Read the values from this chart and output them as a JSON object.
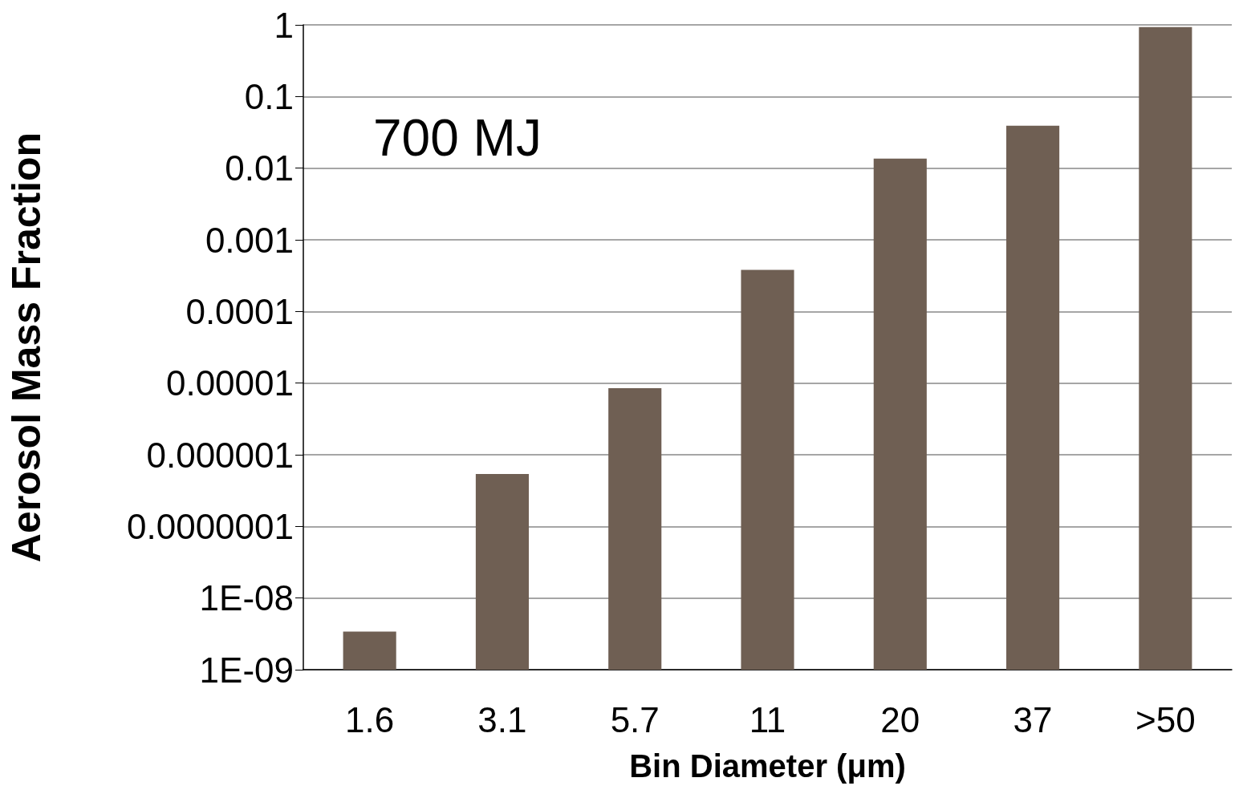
{
  "chart_data": {
    "type": "bar",
    "xlabel": "Bin Diameter (μm)",
    "ylabel": "Aerosol Mass Fraction",
    "annotations": [
      "700 MJ"
    ],
    "categories": [
      "1.6",
      "3.1",
      "5.7",
      "11",
      "20",
      "37",
      ">50"
    ],
    "series": [
      {
        "color": "#6f5f53",
        "values": [
          3.4e-09,
          5.4e-07,
          8.5e-06,
          0.00038,
          0.0136,
          0.039,
          0.93
        ]
      }
    ],
    "log": "y",
    "ylim": [
      1e-09,
      1
    ],
    "yticks": [
      {
        "value": 1e-09,
        "label": "1E-09"
      },
      {
        "value": 1e-08,
        "label": "1E-08"
      },
      {
        "value": 1e-07,
        "label": "0.0000001"
      },
      {
        "value": 1e-06,
        "label": "0.000001"
      },
      {
        "value": 1e-05,
        "label": "0.00001"
      },
      {
        "value": 0.0001,
        "label": "0.0001"
      },
      {
        "value": 0.001,
        "label": "0.001"
      },
      {
        "value": 0.01,
        "label": "0.01"
      },
      {
        "value": 0.1,
        "label": "0.1"
      },
      1
    ],
    "grid": "y"
  }
}
